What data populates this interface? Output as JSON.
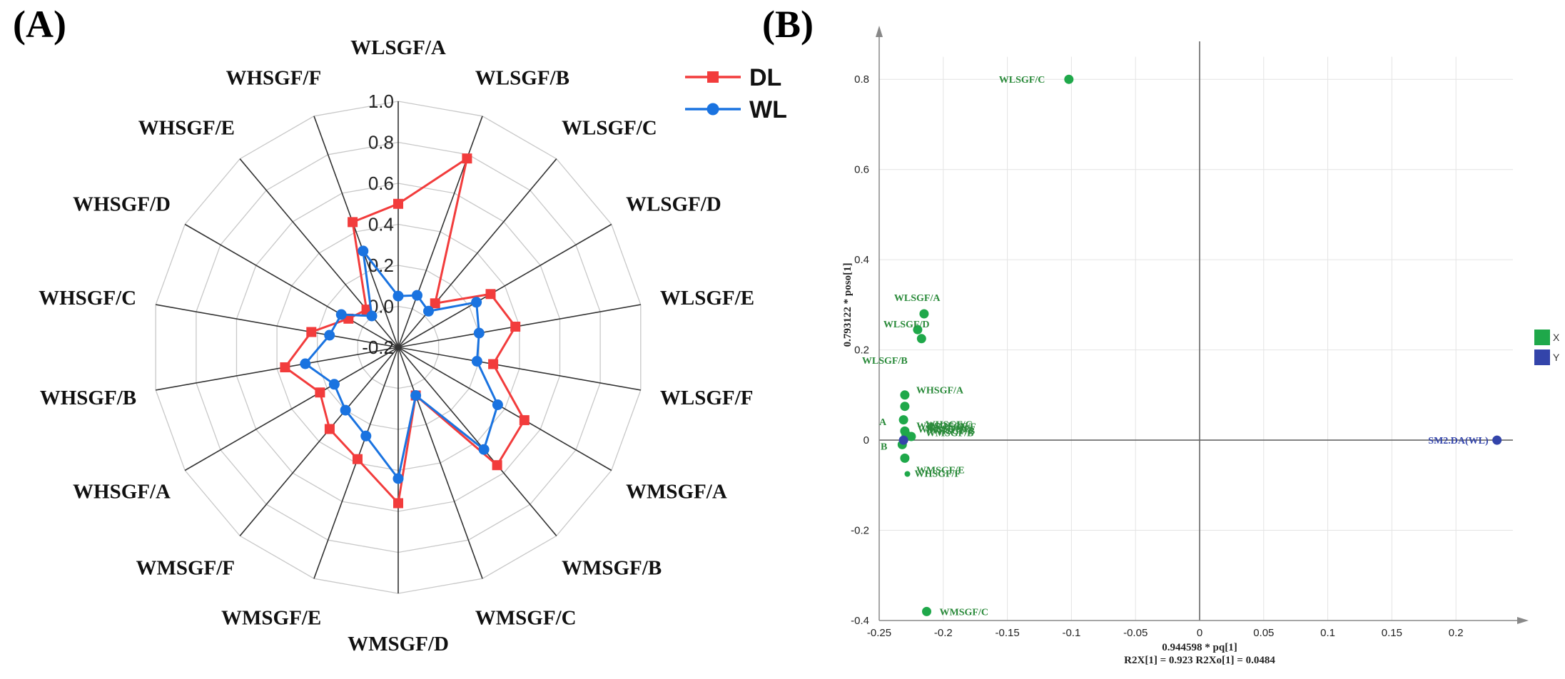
{
  "panels": {
    "a_label": "(A)",
    "b_label": "(B)"
  },
  "chart_data": [
    {
      "type": "radar",
      "categories": [
        "WLSGF/A",
        "WLSGF/B",
        "WLSGF/C",
        "WLSGF/D",
        "WLSGF/E",
        "WLSGF/F",
        "WMSGF/A",
        "WMSGF/B",
        "WMSGF/C",
        "WMSGF/D",
        "WMSGF/E",
        "WMSGF/F",
        "WHSGF/A",
        "WHSGF/B",
        "WHSGF/C",
        "WHSGF/D",
        "WHSGF/E",
        "WHSGF/F"
      ],
      "rlim": [
        -0.2,
        1.0
      ],
      "ticks": [
        "-0.2",
        "0.0",
        "0.2",
        "0.4",
        "0.6",
        "0.8",
        "1.0"
      ],
      "tick_values": [
        -0.2,
        0.0,
        0.2,
        0.4,
        0.6,
        0.8,
        1.0
      ],
      "series": [
        {
          "name": "DL",
          "color": "#f23c3c",
          "marker": "square",
          "values": [
            0.5,
            0.78,
            0.08,
            0.32,
            0.38,
            0.27,
            0.51,
            0.55,
            0.05,
            0.56,
            0.38,
            0.32,
            0.24,
            0.36,
            0.23,
            0.08,
            0.04,
            0.45
          ]
        },
        {
          "name": "WL",
          "color": "#1a73e0",
          "marker": "circle",
          "values": [
            0.05,
            0.07,
            0.03,
            0.24,
            0.2,
            0.19,
            0.36,
            0.45,
            0.05,
            0.44,
            0.26,
            0.2,
            0.16,
            0.26,
            0.14,
            0.12,
            0.0,
            0.3
          ]
        }
      ]
    },
    {
      "type": "scatter",
      "xlabel": "0.944598 * pq[1]",
      "ylabel": "0.793122 * poso[1]",
      "footer": "R2X[1] = 0.923   R2Xo[1] = 0.0484",
      "xlim": [
        -0.25,
        0.25
      ],
      "ylim": [
        -0.4,
        0.9
      ],
      "xticks": [
        -0.25,
        -0.2,
        -0.15,
        -0.1,
        -0.05,
        0,
        0.05,
        0.1,
        0.15,
        0.2
      ],
      "xtick_labels": [
        "-0.25",
        "-0.2",
        "-0.15",
        "-0.1",
        "-0.05",
        "0",
        "0.05",
        "0.1",
        "0.15",
        "0.2"
      ],
      "yticks": [
        -0.4,
        -0.2,
        0,
        0.2,
        0.4,
        0.6,
        0.8
      ],
      "ytick_labels": [
        "-0.4",
        "-0.2",
        "0",
        "0.2",
        "0.4",
        "0.6",
        "0.8"
      ],
      "legend": [
        {
          "name": "X",
          "color": "#1fa84a"
        },
        {
          "name": "Y",
          "color": "#3344aa"
        }
      ],
      "points_x": [
        {
          "label": "WLSGF/C",
          "x": -0.102,
          "y": 0.8
        },
        {
          "label": "WLSGF/A",
          "x": -0.215,
          "y": 0.28
        },
        {
          "label": "WLSGF/D",
          "x": -0.22,
          "y": 0.245
        },
        {
          "label": "",
          "x": -0.217,
          "y": 0.225
        },
        {
          "label": "WLSGF/B",
          "x": -0.23,
          "y": 0.1
        },
        {
          "label": "WHSGF/A",
          "x": -0.23,
          "y": 0.075
        },
        {
          "label": "WHSGF/D",
          "x": -0.231,
          "y": 0.045
        },
        {
          "label": "WMSGF/D",
          "x": -0.23,
          "y": 0.02
        },
        {
          "label": "",
          "x": -0.229,
          "y": 0.012
        },
        {
          "label": "",
          "x": -0.225,
          "y": 0.008
        },
        {
          "label": "",
          "x": -0.232,
          "y": -0.01
        },
        {
          "label": "WMSGF/E",
          "x": -0.23,
          "y": -0.04
        },
        {
          "label": "WHSGF/F",
          "x": -0.228,
          "y": -0.075
        },
        {
          "label": "WMSGF/C",
          "x": -0.213,
          "y": -0.38
        }
      ],
      "overlap_labels": [
        "WHSGF/C",
        "WMSGF/F",
        "WLSGF/E",
        "WHSGF/B",
        "WMSGF/B"
      ],
      "points_y": [
        {
          "label": "SM2.DA(WL)",
          "x": 0.232,
          "y": 0.0
        },
        {
          "label": "",
          "x": -0.231,
          "y": 0.0
        }
      ]
    }
  ]
}
